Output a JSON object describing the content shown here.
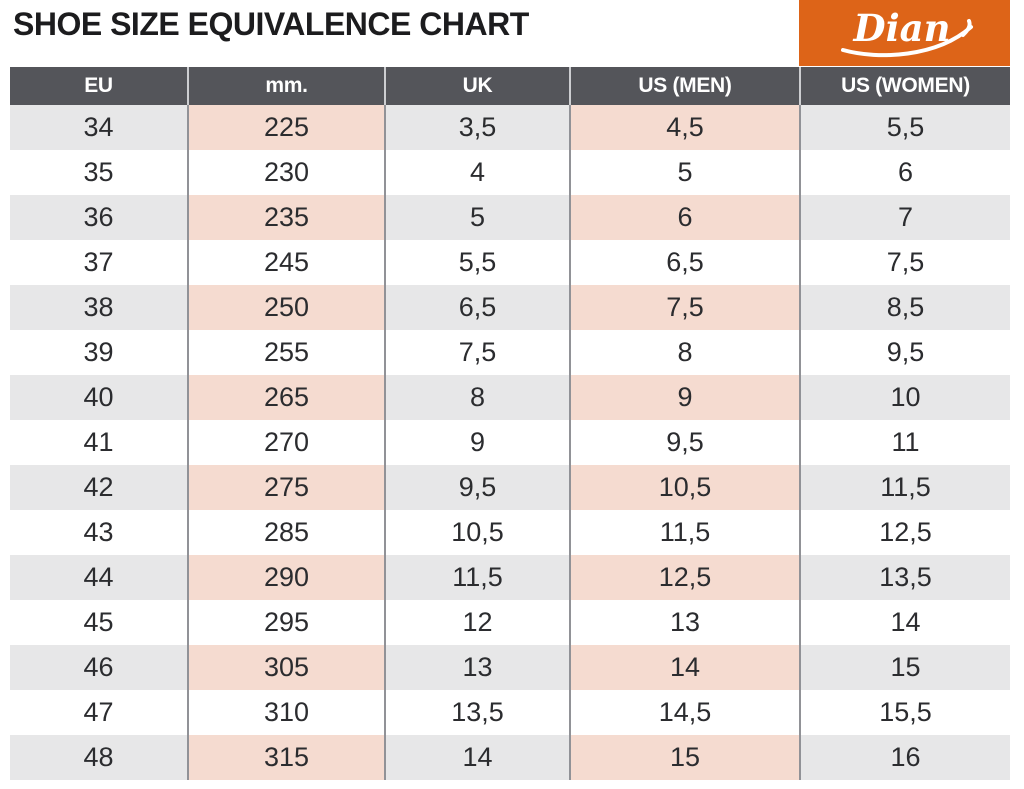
{
  "logo": {
    "text": "Dian"
  },
  "theme": {
    "logo_bg": "#dd6418",
    "header_bg": "#54555a",
    "header_text": "#ffffff",
    "header_separator": "#cdced1",
    "body_separator": "#919297",
    "row_gray": "#e7e7e8",
    "row_pink": "#f5dbd0",
    "row_white": "#ffffff",
    "body_text": "#2b2c2f",
    "title_text": "#1c1c1e"
  },
  "chart_data": {
    "type": "table",
    "title": "SHOE SIZE EQUIVALENCE CHART",
    "columns": [
      "EU",
      "mm.",
      "UK",
      "US (MEN)",
      "US (WOMEN)"
    ],
    "rows": [
      [
        "34",
        "225",
        "3,5",
        "4,5",
        "5,5"
      ],
      [
        "35",
        "230",
        "4",
        "5",
        "6"
      ],
      [
        "36",
        "235",
        "5",
        "6",
        "7"
      ],
      [
        "37",
        "245",
        "5,5",
        "6,5",
        "7,5"
      ],
      [
        "38",
        "250",
        "6,5",
        "7,5",
        "8,5"
      ],
      [
        "39",
        "255",
        "7,5",
        "8",
        "9,5"
      ],
      [
        "40",
        "265",
        "8",
        "9",
        "10"
      ],
      [
        "41",
        "270",
        "9",
        "9,5",
        "11"
      ],
      [
        "42",
        "275",
        "9,5",
        "10,5",
        "11,5"
      ],
      [
        "43",
        "285",
        "10,5",
        "11,5",
        "12,5"
      ],
      [
        "44",
        "290",
        "11,5",
        "12,5",
        "13,5"
      ],
      [
        "45",
        "295",
        "12",
        "13",
        "14"
      ],
      [
        "46",
        "305",
        "13",
        "14",
        "15"
      ],
      [
        "47",
        "310",
        "13,5",
        "14,5",
        "15,5"
      ],
      [
        "48",
        "315",
        "14",
        "15",
        "16"
      ]
    ],
    "layout": {
      "row_highlighting": "alternate rows tinted starting with first row; gray tint on EU/UK/US(WOMEN) columns, pink tint on mm./US(MEN) columns",
      "grid": "vertical column separators only"
    }
  }
}
